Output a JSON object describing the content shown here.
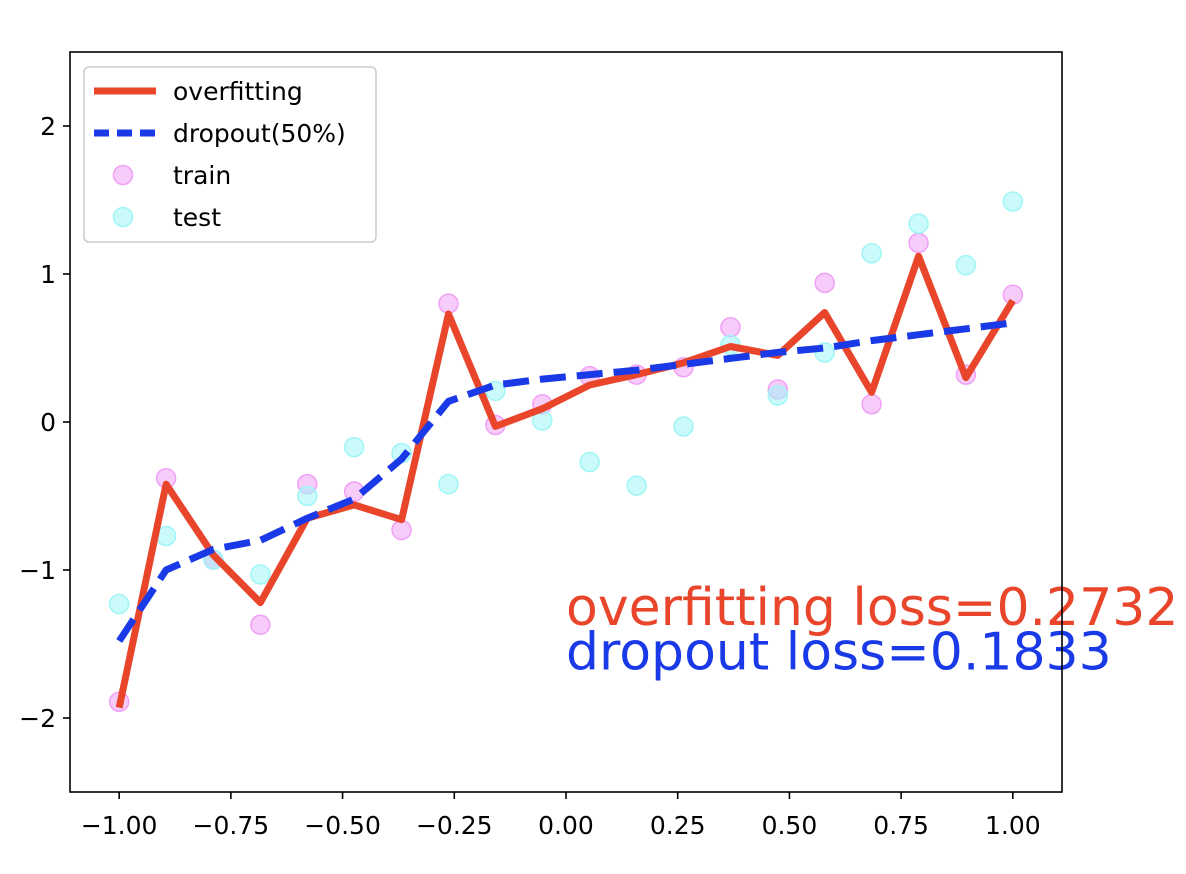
{
  "chart_data": {
    "type": "line",
    "title": "",
    "xlabel": "",
    "ylabel": "",
    "xlim": [
      -1.11,
      1.11
    ],
    "ylim": [
      -2.5,
      2.5
    ],
    "x_ticks": [
      -1.0,
      -0.75,
      -0.5,
      -0.25,
      0.0,
      0.25,
      0.5,
      0.75,
      1.0
    ],
    "x_tick_labels": [
      "−1.00",
      "−0.75",
      "−0.50",
      "−0.25",
      "0.00",
      "0.25",
      "0.50",
      "0.75",
      "1.00"
    ],
    "y_ticks": [
      -2,
      -1,
      0,
      1,
      2
    ],
    "y_tick_labels": [
      "−2",
      "−1",
      "0",
      "1",
      "2"
    ],
    "grid": false,
    "legend_position": "top-left",
    "x": [
      -1.0,
      -0.895,
      -0.789,
      -0.684,
      -0.579,
      -0.474,
      -0.368,
      -0.263,
      -0.158,
      -0.053,
      0.053,
      0.158,
      0.263,
      0.368,
      0.474,
      0.579,
      0.684,
      0.789,
      0.895,
      1.0
    ],
    "series": [
      {
        "name": "overfitting",
        "kind": "line",
        "color": "#e8452b",
        "style": "solid",
        "values": [
          -1.93,
          -0.42,
          -0.9,
          -1.22,
          -0.65,
          -0.56,
          -0.66,
          0.73,
          -0.03,
          0.09,
          0.25,
          0.32,
          0.4,
          0.51,
          0.45,
          0.74,
          0.2,
          1.12,
          0.3,
          0.82
        ]
      },
      {
        "name": "dropout(50%)",
        "kind": "line",
        "color": "#1a3ae8",
        "style": "dashed",
        "values": [
          -1.48,
          -1.0,
          -0.86,
          -0.8,
          -0.65,
          -0.52,
          -0.25,
          0.14,
          0.25,
          0.29,
          0.32,
          0.35,
          0.39,
          0.43,
          0.47,
          0.5,
          0.55,
          0.59,
          0.63,
          0.67
        ]
      },
      {
        "name": "train",
        "kind": "scatter",
        "color": "#f0a0f5",
        "values": [
          -1.89,
          -0.38,
          -0.93,
          -1.37,
          -0.42,
          -0.47,
          -0.73,
          0.8,
          -0.02,
          0.12,
          0.31,
          0.32,
          0.37,
          0.64,
          0.22,
          0.94,
          0.12,
          1.21,
          0.32,
          0.86
        ]
      },
      {
        "name": "test",
        "kind": "scatter",
        "color": "#a0f5f5",
        "values": [
          -1.23,
          -0.77,
          -0.93,
          -1.03,
          -0.5,
          -0.17,
          -0.21,
          -0.42,
          0.21,
          0.01,
          -0.27,
          -0.43,
          -0.03,
          0.52,
          0.18,
          0.47,
          1.14,
          1.34,
          1.06,
          1.49
        ]
      }
    ],
    "annotations": [
      {
        "text": "overfitting loss=0.2732",
        "x": 0.0,
        "y": -1.25,
        "color": "#e8452b"
      },
      {
        "text": "dropout loss=0.1833",
        "x": 0.0,
        "y": -1.55,
        "color": "#1a3ae8"
      }
    ]
  }
}
